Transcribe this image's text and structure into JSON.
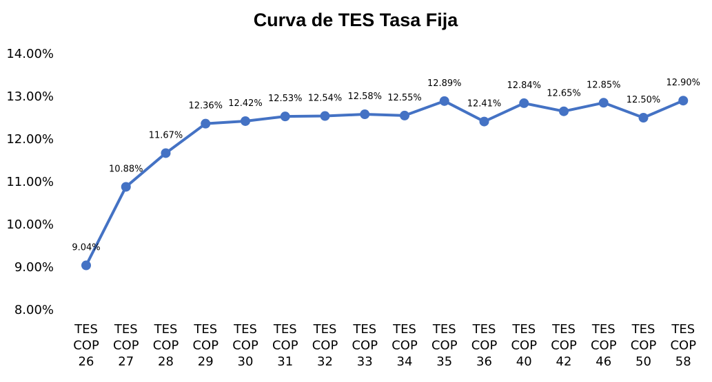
{
  "chart_data": {
    "type": "line",
    "title": "Curva de TES Tasa Fija",
    "xlabel": "",
    "ylabel": "",
    "categories": [
      [
        "TES",
        "COP",
        "26"
      ],
      [
        "TES",
        "COP",
        "27"
      ],
      [
        "TES",
        "COP",
        "28"
      ],
      [
        "TES",
        "COP",
        "29"
      ],
      [
        "TES",
        "COP",
        "30"
      ],
      [
        "TES",
        "COP",
        "31"
      ],
      [
        "TES",
        "COP",
        "32"
      ],
      [
        "TES",
        "COP",
        "33"
      ],
      [
        "TES",
        "COP",
        "34"
      ],
      [
        "TES",
        "COP",
        "35"
      ],
      [
        "TES",
        "COP",
        "36"
      ],
      [
        "TES",
        "COP",
        "40"
      ],
      [
        "TES",
        "COP",
        "42"
      ],
      [
        "TES",
        "COP",
        "46"
      ],
      [
        "TES",
        "COP",
        "50"
      ],
      [
        "TES",
        "COP",
        "58"
      ]
    ],
    "values": [
      9.04,
      10.88,
      11.67,
      12.36,
      12.42,
      12.53,
      12.54,
      12.58,
      12.55,
      12.89,
      12.41,
      12.84,
      12.65,
      12.85,
      12.5,
      12.9
    ],
    "data_labels": [
      "9.04%",
      "10.88%",
      "11.67%",
      "12.36%",
      "12.42%",
      "12.53%",
      "12.54%",
      "12.58%",
      "12.55%",
      "12.89%",
      "12.41%",
      "12.84%",
      "12.65%",
      "12.85%",
      "12.50%",
      "12.90%"
    ],
    "ylim": [
      8,
      14
    ],
    "yticks": [
      8,
      9,
      10,
      11,
      12,
      13,
      14
    ],
    "ytick_labels": [
      "8.00%",
      "9.00%",
      "10.00%",
      "11.00%",
      "12.00%",
      "13.00%",
      "14.00%"
    ],
    "grid": false,
    "legend": "none",
    "series_color": "#4472C4"
  }
}
